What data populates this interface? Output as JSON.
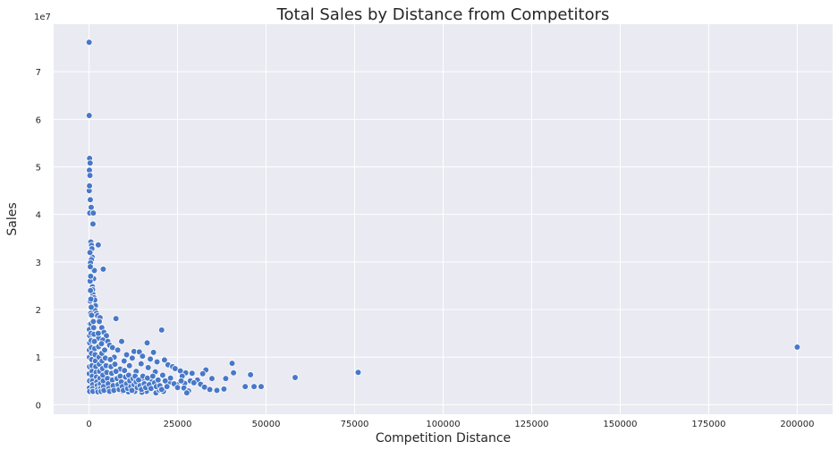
{
  "chart_data": {
    "type": "scatter",
    "title": "Total Sales by Distance from Competitors",
    "xlabel": "Competition Distance",
    "ylabel": "Sales",
    "y_multiplier_label": "1e7",
    "xlim": [
      -10000,
      210000
    ],
    "ylim": [
      -0.2,
      8.0
    ],
    "y_scale_note": "values in units of 1e7",
    "x_ticks": [
      0,
      25000,
      50000,
      75000,
      100000,
      125000,
      150000,
      175000,
      200000
    ],
    "y_ticks": [
      0,
      1,
      2,
      3,
      4,
      5,
      6,
      7
    ],
    "grid": true,
    "background": "#eaeaf2",
    "point_color": "#4878c8",
    "points": [
      [
        20,
        7.62
      ],
      [
        40,
        6.08
      ],
      [
        150,
        5.18
      ],
      [
        300,
        5.08
      ],
      [
        100,
        4.93
      ],
      [
        250,
        4.82
      ],
      [
        350,
        4.31
      ],
      [
        600,
        4.15
      ],
      [
        200,
        4.03
      ],
      [
        1200,
        4.03
      ],
      [
        1100,
        3.8
      ],
      [
        500,
        3.42
      ],
      [
        700,
        3.35
      ],
      [
        800,
        3.28
      ],
      [
        2600,
        3.36
      ],
      [
        900,
        3.1
      ],
      [
        650,
        3.05
      ],
      [
        400,
        2.98
      ],
      [
        1500,
        2.82
      ],
      [
        4000,
        2.85
      ],
      [
        1300,
        2.65
      ],
      [
        950,
        2.48
      ],
      [
        1000,
        2.42
      ],
      [
        1100,
        2.32
      ],
      [
        1400,
        2.25
      ],
      [
        1600,
        2.2
      ],
      [
        300,
        2.18
      ],
      [
        1800,
        2.08
      ],
      [
        1700,
        1.98
      ],
      [
        2100,
        1.92
      ],
      [
        2400,
        1.87
      ],
      [
        3100,
        1.83
      ],
      [
        7600,
        1.81
      ],
      [
        2900,
        1.75
      ],
      [
        200,
        1.7
      ],
      [
        3600,
        1.62
      ],
      [
        20500,
        1.57
      ],
      [
        4200,
        1.52
      ],
      [
        4900,
        1.45
      ],
      [
        2700,
        1.4
      ],
      [
        3900,
        1.36
      ],
      [
        5300,
        1.33
      ],
      [
        9200,
        1.33
      ],
      [
        16400,
        1.3
      ],
      [
        5800,
        1.25
      ],
      [
        6600,
        1.2
      ],
      [
        8100,
        1.15
      ],
      [
        12700,
        1.12
      ],
      [
        14200,
        1.11
      ],
      [
        18200,
        1.1
      ],
      [
        10600,
        1.05
      ],
      [
        15100,
        1.02
      ],
      [
        7100,
        1.0
      ],
      [
        12200,
        0.98
      ],
      [
        17300,
        0.96
      ],
      [
        21300,
        0.94
      ],
      [
        9900,
        0.92
      ],
      [
        19200,
        0.9
      ],
      [
        40400,
        0.87
      ],
      [
        14700,
        0.86
      ],
      [
        22300,
        0.84
      ],
      [
        11400,
        0.82
      ],
      [
        23600,
        0.8
      ],
      [
        16700,
        0.78
      ],
      [
        24300,
        0.76
      ],
      [
        8800,
        0.75
      ],
      [
        33000,
        0.73
      ],
      [
        25800,
        0.71
      ],
      [
        13300,
        0.7
      ],
      [
        18700,
        0.69
      ],
      [
        76000,
        0.68
      ],
      [
        40800,
        0.67
      ],
      [
        27300,
        0.67
      ],
      [
        29100,
        0.66
      ],
      [
        32100,
        0.65
      ],
      [
        45600,
        0.63
      ],
      [
        20800,
        0.62
      ],
      [
        26300,
        0.6
      ],
      [
        6300,
        0.6
      ],
      [
        58200,
        0.57
      ],
      [
        34700,
        0.55
      ],
      [
        38600,
        0.55
      ],
      [
        10400,
        0.54
      ],
      [
        30600,
        0.52
      ],
      [
        15600,
        0.52
      ],
      [
        28600,
        0.5
      ],
      [
        22800,
        0.48
      ],
      [
        17600,
        0.48
      ],
      [
        29600,
        0.46
      ],
      [
        27000,
        0.45
      ],
      [
        11900,
        0.45
      ],
      [
        31500,
        0.43
      ],
      [
        24800,
        0.42
      ],
      [
        19600,
        0.42
      ],
      [
        5100,
        0.4
      ],
      [
        44100,
        0.38
      ],
      [
        46600,
        0.38
      ],
      [
        48600,
        0.38
      ],
      [
        32600,
        0.37
      ],
      [
        26800,
        0.35
      ],
      [
        13800,
        0.35
      ],
      [
        7900,
        0.35
      ],
      [
        38100,
        0.33
      ],
      [
        34100,
        0.32
      ],
      [
        36100,
        0.3
      ],
      [
        28100,
        0.29
      ],
      [
        21000,
        0.28
      ],
      [
        16200,
        0.28
      ],
      [
        12900,
        0.28
      ],
      [
        9500,
        0.28
      ],
      [
        27600,
        0.25
      ],
      [
        18900,
        0.25
      ],
      [
        14900,
        0.26
      ],
      [
        11100,
        0.27
      ],
      [
        6900,
        0.28
      ],
      [
        19800,
        0.31
      ],
      [
        200000,
        1.21
      ],
      [
        50,
        4.5
      ],
      [
        120,
        4.6
      ],
      [
        80,
        1.58
      ],
      [
        160,
        1.45
      ],
      [
        180,
        1.3
      ],
      [
        90,
        1.15
      ],
      [
        110,
        1.0
      ],
      [
        130,
        0.8
      ],
      [
        60,
        0.65
      ],
      [
        140,
        0.5
      ],
      [
        70,
        0.35
      ],
      [
        170,
        0.28
      ],
      [
        450,
        1.92
      ],
      [
        500,
        1.7
      ],
      [
        550,
        1.5
      ],
      [
        600,
        1.35
      ],
      [
        650,
        1.2
      ],
      [
        700,
        1.08
      ],
      [
        750,
        0.95
      ],
      [
        800,
        0.82
      ],
      [
        850,
        0.7
      ],
      [
        900,
        0.6
      ],
      [
        950,
        0.5
      ],
      [
        1000,
        0.42
      ],
      [
        1050,
        0.34
      ],
      [
        1100,
        0.28
      ],
      [
        1200,
        1.75
      ],
      [
        1300,
        1.62
      ],
      [
        1400,
        1.48
      ],
      [
        1500,
        1.33
      ],
      [
        1600,
        1.18
      ],
      [
        1700,
        1.05
      ],
      [
        1800,
        0.92
      ],
      [
        1900,
        0.8
      ],
      [
        2000,
        0.68
      ],
      [
        2100,
        0.58
      ],
      [
        2200,
        0.48
      ],
      [
        2300,
        0.4
      ],
      [
        2400,
        0.32
      ],
      [
        2500,
        0.27
      ],
      [
        2600,
        1.5
      ],
      [
        2700,
        1.22
      ],
      [
        2800,
        1.0
      ],
      [
        2900,
        0.85
      ],
      [
        3000,
        0.7
      ],
      [
        3100,
        0.56
      ],
      [
        3200,
        0.44
      ],
      [
        3300,
        0.34
      ],
      [
        3400,
        0.28
      ],
      [
        3500,
        1.28
      ],
      [
        3600,
        1.08
      ],
      [
        3700,
        0.92
      ],
      [
        3800,
        0.76
      ],
      [
        3900,
        0.62
      ],
      [
        4000,
        0.5
      ],
      [
        4100,
        0.38
      ],
      [
        4200,
        0.3
      ],
      [
        4400,
        1.15
      ],
      [
        4600,
        0.98
      ],
      [
        4800,
        0.82
      ],
      [
        5000,
        0.68
      ],
      [
        5200,
        0.55
      ],
      [
        5400,
        0.44
      ],
      [
        5600,
        0.34
      ],
      [
        5800,
        0.28
      ],
      [
        6000,
        0.95
      ],
      [
        6200,
        0.8
      ],
      [
        6400,
        0.66
      ],
      [
        6600,
        0.52
      ],
      [
        6800,
        0.4
      ],
      [
        7000,
        0.3
      ],
      [
        7300,
        0.85
      ],
      [
        7600,
        0.7
      ],
      [
        7900,
        0.55
      ],
      [
        8200,
        0.42
      ],
      [
        8500,
        0.32
      ],
      [
        8800,
        0.6
      ],
      [
        9100,
        0.48
      ],
      [
        9400,
        0.38
      ],
      [
        9700,
        0.3
      ],
      [
        10000,
        0.72
      ],
      [
        10300,
        0.58
      ],
      [
        10600,
        0.44
      ],
      [
        10900,
        0.34
      ],
      [
        11200,
        0.62
      ],
      [
        11500,
        0.5
      ],
      [
        11800,
        0.38
      ],
      [
        12100,
        0.3
      ],
      [
        12400,
        0.55
      ],
      [
        12700,
        0.42
      ],
      [
        13000,
        0.6
      ],
      [
        13300,
        0.48
      ],
      [
        13600,
        0.36
      ],
      [
        14000,
        0.52
      ],
      [
        14400,
        0.4
      ],
      [
        14800,
        0.32
      ],
      [
        15200,
        0.6
      ],
      [
        15600,
        0.44
      ],
      [
        16000,
        0.36
      ],
      [
        16500,
        0.56
      ],
      [
        17000,
        0.42
      ],
      [
        17500,
        0.34
      ],
      [
        18000,
        0.6
      ],
      [
        18500,
        0.46
      ],
      [
        19000,
        0.38
      ],
      [
        19500,
        0.52
      ],
      [
        20000,
        0.4
      ],
      [
        20500,
        0.32
      ],
      [
        21500,
        0.5
      ],
      [
        22000,
        0.38
      ],
      [
        23000,
        0.56
      ],
      [
        24000,
        0.44
      ],
      [
        25000,
        0.36
      ],
      [
        26000,
        0.5
      ],
      [
        300,
        2.6
      ],
      [
        400,
        2.4
      ],
      [
        500,
        2.22
      ],
      [
        600,
        2.05
      ],
      [
        700,
        1.88
      ],
      [
        250,
        3.2
      ],
      [
        350,
        2.9
      ],
      [
        450,
        2.7
      ]
    ]
  }
}
